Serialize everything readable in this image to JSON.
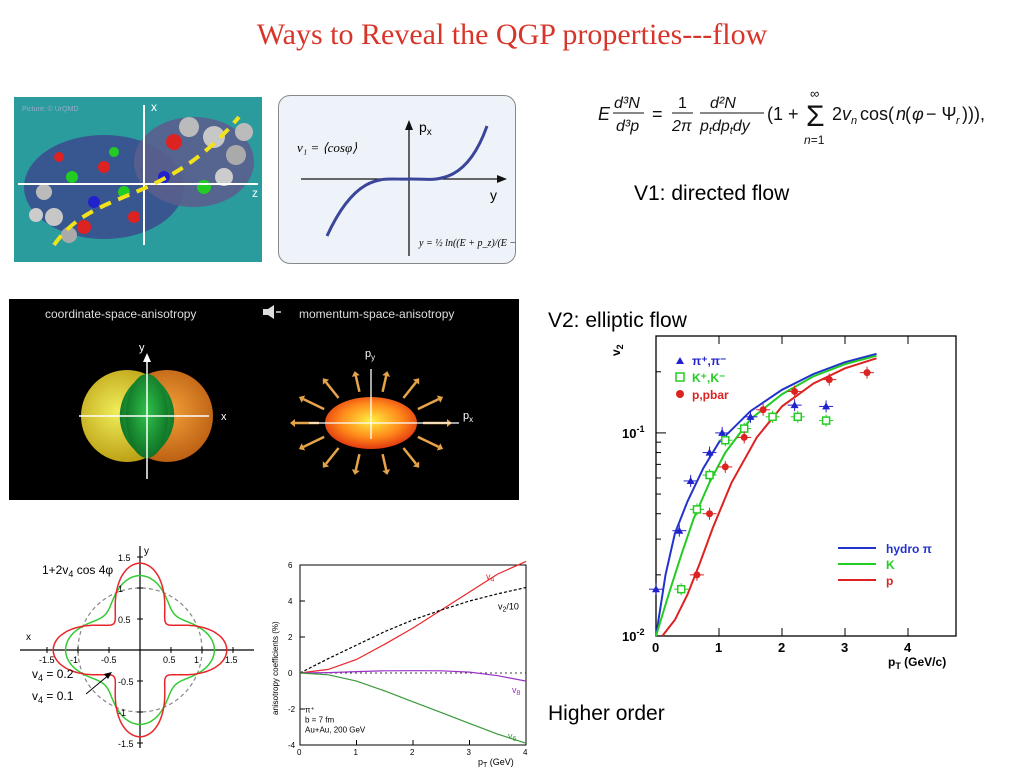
{
  "slide": {
    "title": "Ways to Reveal the QGP properties---flow",
    "v1_label": "V1:  directed flow",
    "v2_label": "V2:  elliptic flow",
    "higher_label": "Higher order"
  },
  "equation": {
    "lhs": "E d³N / d³p",
    "rhs": "= 1/2π · d²N/(p_t dp_t dy) (1 + Σ_{n=1}^{∞} 2v_n cos(n(φ − Ψ_r))),"
  },
  "collision_image": {
    "caption": "Picture: © UrQMD",
    "x_axis": "x",
    "z_axis": "z"
  },
  "v1_diagram": {
    "formula": "v₁ = ⟨cosφ⟩",
    "y_axis": "p",
    "y_axis_sub": "x",
    "x_axis": "y",
    "rapidity_formula": "y = ½ ln((E + p_z)/(E − p_z))"
  },
  "anisotropy_image": {
    "left_title": "coordinate-space-anisotropy",
    "right_title": "momentum-space-anisotropy",
    "y_label": "y",
    "x_label": "x",
    "py_label": "p",
    "py_sub": "y",
    "px_label": "p",
    "px_sub": "x",
    "arrow_icon": "speaker-arrow-icon"
  },
  "v4_polar": {
    "formula": "1+2v",
    "formula_sub": "4",
    "formula_tail": " cos 4φ",
    "label_a": "v",
    "label_a_sub": "4",
    "label_a_val": " = 0.2",
    "label_b": "v",
    "label_b_sub": "4",
    "label_b_val": " = 0.1",
    "x_axis": "x",
    "y_axis": "y",
    "ticks_x": [
      "-1.5",
      "-1",
      "-0.5",
      "0.5",
      "1",
      "1.5"
    ],
    "ticks_y": [
      "1.5",
      "1",
      "0.5",
      "-0.5",
      "-1",
      "-1.5"
    ],
    "colors": {
      "v02": "#e8262a",
      "v01": "#35c935",
      "circle": "#888888"
    }
  },
  "chart_data": [
    {
      "type": "line",
      "xlabel": "p",
      "xlabel_sub": "T",
      "xlabel_unit": " (GeV)",
      "ylabel": "anisotropy coefficients  (%)",
      "xlim": [
        0,
        4
      ],
      "ylim": [
        -4,
        6
      ],
      "x_ticks": [
        "0",
        "1",
        "2",
        "3",
        "4"
      ],
      "y_ticks": [
        "6",
        "4",
        "2",
        "0",
        "-2",
        "-4"
      ],
      "annotation": [
        "π⁺",
        "b = 7 fm",
        "Au+Au, 200 GeV"
      ],
      "series": [
        {
          "name": "v4",
          "label": "v",
          "label_sub": "4",
          "color": "#e8262a",
          "dash": false,
          "x": [
            0,
            0.5,
            1,
            1.5,
            2,
            2.5,
            3,
            3.5,
            4
          ],
          "y": [
            0,
            0.2,
            0.75,
            1.6,
            2.5,
            3.5,
            4.5,
            5.5,
            6.2
          ]
        },
        {
          "name": "v2/10",
          "label": "v",
          "label_sub": "2",
          "label_tail": "/10",
          "color": "#000000",
          "dash": true,
          "x": [
            0,
            0.5,
            1,
            1.5,
            2,
            2.5,
            3,
            3.5,
            4
          ],
          "y": [
            0,
            0.8,
            1.55,
            2.3,
            2.95,
            3.5,
            4.0,
            4.4,
            4.75
          ]
        },
        {
          "name": "v8",
          "label": "v",
          "label_sub": "8",
          "color": "#9b30c8",
          "dash": false,
          "x": [
            0,
            0.5,
            1,
            1.5,
            2,
            2.5,
            3,
            3.5,
            4
          ],
          "y": [
            0,
            0.02,
            0.08,
            0.12,
            0.13,
            0.12,
            0.05,
            -0.15,
            -0.45
          ]
        },
        {
          "name": "v6",
          "label": "v",
          "label_sub": "6",
          "color": "#3a9a3a",
          "dash": false,
          "x": [
            0,
            0.5,
            1,
            1.5,
            2,
            2.5,
            3,
            3.5,
            4
          ],
          "y": [
            0,
            -0.1,
            -0.45,
            -1.0,
            -1.6,
            -2.2,
            -2.8,
            -3.4,
            -3.9
          ]
        }
      ]
    },
    {
      "type": "scatter",
      "ylabel": "v",
      "ylabel_sub": "2",
      "xlabel": "p",
      "xlabel_sub": "T",
      "xlabel_unit": " (GeV/c)",
      "xlim": [
        0,
        4
      ],
      "ylim_log": [
        0.01,
        0.3
      ],
      "x_ticks": [
        "0",
        "1",
        "2",
        "3",
        "4"
      ],
      "y_ticks": [
        {
          "base": "10",
          "exp": "-1"
        },
        {
          "base": "10",
          "exp": "-2"
        }
      ],
      "legend_data": [
        {
          "name": "π⁺,π⁻",
          "color": "#2222cc",
          "marker": "triangle"
        },
        {
          "name": "K⁺,K⁻",
          "color": "#22cc22",
          "marker": "square"
        },
        {
          "name": "p,pbar",
          "color": "#dd2222",
          "marker": "circle"
        }
      ],
      "legend_hydro": [
        {
          "name": "hydro π",
          "color": "#2233cc"
        },
        {
          "name": "K",
          "color": "#22cc22"
        },
        {
          "name": "p",
          "color": "#dd2222"
        }
      ],
      "series": [
        {
          "name": "π⁺,π⁻",
          "color": "#2222cc",
          "x": [
            0.0,
            0.37,
            0.55,
            0.85,
            1.05,
            1.5,
            2.2,
            2.7
          ],
          "y": [
            0.017,
            0.033,
            0.058,
            0.08,
            0.1,
            0.12,
            0.137,
            0.135
          ]
        },
        {
          "name": "K⁺,K⁻",
          "color": "#22cc22",
          "x": [
            0.4,
            0.65,
            0.85,
            1.1,
            1.4,
            1.85,
            2.25,
            2.7
          ],
          "y": [
            0.017,
            0.042,
            0.062,
            0.092,
            0.105,
            0.12,
            0.12,
            0.115
          ]
        },
        {
          "name": "p,pbar",
          "color": "#dd2222",
          "x": [
            0.65,
            0.85,
            1.1,
            1.4,
            1.7,
            2.2,
            2.75,
            3.35
          ],
          "y": [
            0.02,
            0.04,
            0.068,
            0.095,
            0.13,
            0.16,
            0.183,
            0.198
          ]
        },
        {
          "name": "hydro π",
          "color": "#2233cc",
          "line": true,
          "x": [
            0.0,
            0.15,
            0.3,
            0.5,
            0.75,
            1.0,
            1.5,
            2.0,
            2.5,
            3.0,
            3.5
          ],
          "y": [
            0.01,
            0.02,
            0.032,
            0.046,
            0.067,
            0.09,
            0.128,
            0.163,
            0.195,
            0.223,
            0.245
          ]
        },
        {
          "name": "K",
          "color": "#22cc22",
          "line": true,
          "x": [
            0.0,
            0.2,
            0.4,
            0.6,
            0.85,
            1.1,
            1.5,
            2.0,
            2.5,
            3.0,
            3.5
          ],
          "y": [
            0.01,
            0.016,
            0.025,
            0.038,
            0.057,
            0.08,
            0.117,
            0.155,
            0.19,
            0.218,
            0.24
          ]
        },
        {
          "name": "p",
          "color": "#dd2222",
          "line": true,
          "x": [
            0.1,
            0.3,
            0.5,
            0.7,
            0.9,
            1.2,
            1.6,
            2.0,
            2.5,
            3.0,
            3.5
          ],
          "y": [
            0.01,
            0.012,
            0.016,
            0.023,
            0.034,
            0.057,
            0.095,
            0.135,
            0.175,
            0.208,
            0.233
          ]
        }
      ]
    }
  ]
}
